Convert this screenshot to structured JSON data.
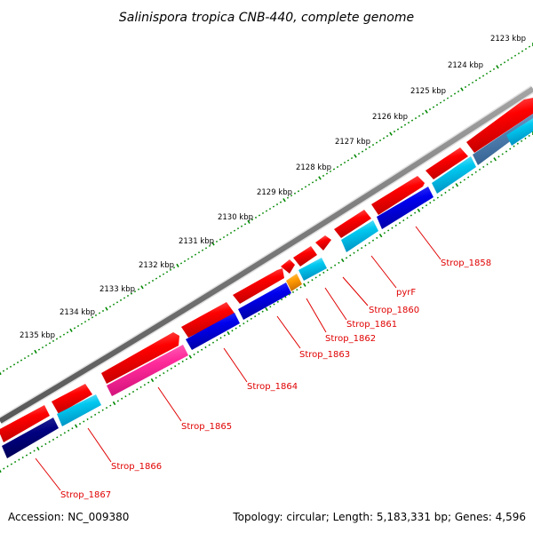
{
  "title": "Salinispora tropica CNB-440, complete genome",
  "footer": {
    "accession": "Accession: NC_009380",
    "topology": "Topology: circular; Length: 5,183,331 bp; Genes: 4,596"
  },
  "ruler": {
    "labels": [
      "2123 kbp",
      "2124 kbp",
      "2125 kbp",
      "2126 kbp",
      "2127 kbp",
      "2128 kbp",
      "2129 kbp",
      "2130 kbp",
      "2131 kbp",
      "2132 kbp",
      "2133 kbp",
      "2134 kbp",
      "2135 kbp"
    ]
  },
  "genes": [
    {
      "name": "Strop_1858"
    },
    {
      "name": "pyrF"
    },
    {
      "name": "Strop_1860"
    },
    {
      "name": "Strop_1861"
    },
    {
      "name": "Strop_1862"
    },
    {
      "name": "Strop_1863"
    },
    {
      "name": "Strop_1864"
    },
    {
      "name": "Strop_1865"
    },
    {
      "name": "Strop_1866"
    },
    {
      "name": "Strop_1867"
    }
  ],
  "colors": {
    "backbone": "#808080",
    "cds_forward": "#ff0000",
    "cds_reverse_red": "#ff0000",
    "blue": "#0000ff",
    "light_blue": "#00ccff",
    "navy": "#000080",
    "pink": "#ff33aa",
    "orange": "#ff9900",
    "steel": "#4f7fb0",
    "tick_green": "#008800",
    "label_red": "#e00000"
  }
}
